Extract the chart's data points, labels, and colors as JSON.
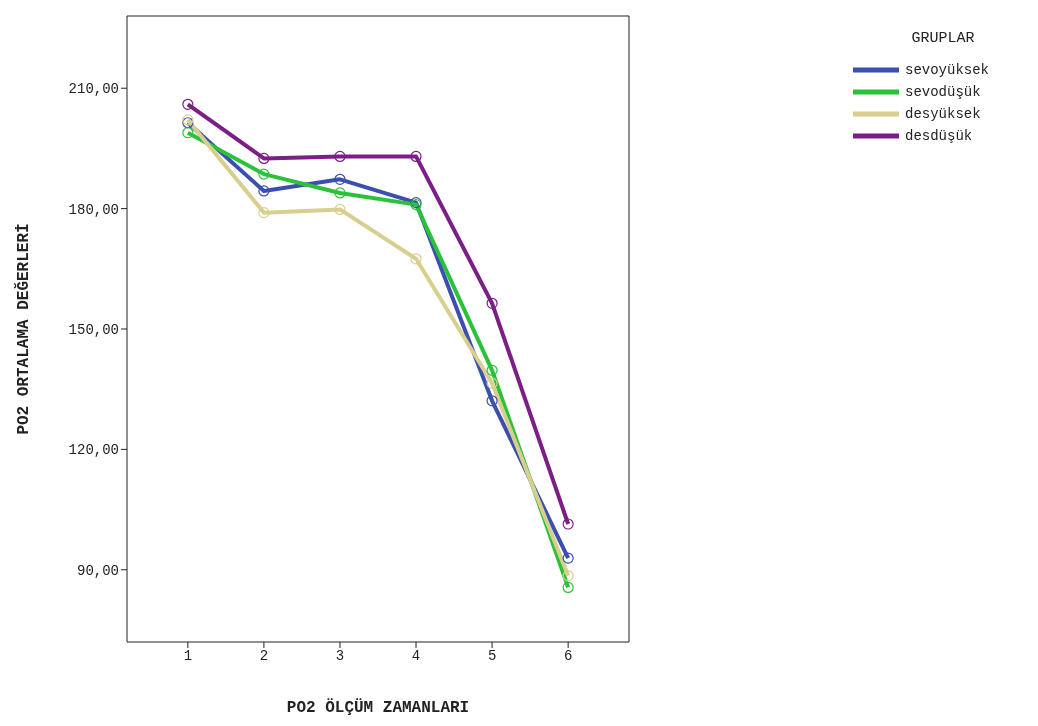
{
  "chart_data": {
    "type": "line",
    "xlabel": "PO2 ÖLÇÜM ZAMANLARI",
    "ylabel": "PO2 ORTALAMA DEĞERLERİ",
    "legend_title": "GRUPLAR",
    "x": [
      1,
      2,
      3,
      4,
      5,
      6
    ],
    "xlim": [
      0.2,
      6.8
    ],
    "xticks": [
      1,
      2,
      3,
      4,
      5,
      6
    ],
    "ylim": [
      72,
      228
    ],
    "yticks": [
      {
        "value": 90,
        "label": "90,00"
      },
      {
        "value": 120,
        "label": "120,00"
      },
      {
        "value": 150,
        "label": "150,00"
      },
      {
        "value": 180,
        "label": "180,00"
      },
      {
        "value": 210,
        "label": "210,00"
      }
    ],
    "grid": false,
    "legend": "top right",
    "marker": "circle",
    "line_style": "solid",
    "series": [
      {
        "name": "sevoyüksek",
        "color": "#3a4fb0",
        "values": [
          201.4,
          184.4,
          187.3,
          181.5,
          132.1,
          92.9
        ]
      },
      {
        "name": "sevodüşük",
        "color": "#2bc23a",
        "values": [
          198.9,
          188.6,
          183.9,
          181,
          139.7,
          85.6
        ]
      },
      {
        "name": "desyüksek",
        "color": "#d8cf8f",
        "values": [
          202.1,
          179,
          179.8,
          167.5,
          136.5,
          88.5
        ]
      },
      {
        "name": "desdüşük",
        "color": "#7b1f86",
        "values": [
          206,
          192.5,
          193,
          193,
          156.4,
          101.4
        ]
      }
    ]
  }
}
